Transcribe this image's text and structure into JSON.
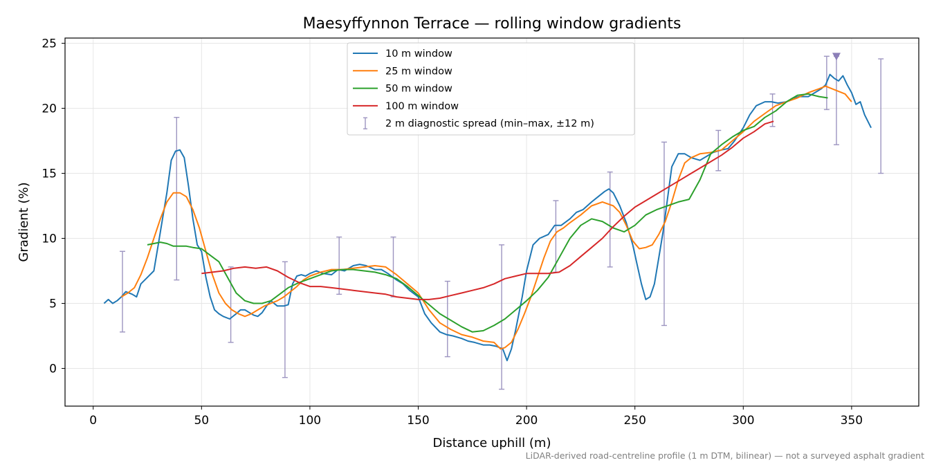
{
  "chart_data": {
    "type": "line",
    "title": "Maesyffynnon Terrace — rolling window gradients",
    "xlabel": "Distance uphill (m)",
    "ylabel": "Gradient (%)",
    "xlim": [
      -13,
      381
    ],
    "ylim": [
      -2.9,
      25.4
    ],
    "xticks": [
      0,
      50,
      100,
      150,
      200,
      250,
      300,
      350
    ],
    "yticks": [
      0,
      5,
      10,
      15,
      20,
      25
    ],
    "grid": true,
    "legend_position": "top-center",
    "footnote": "LiDAR-derived road-centreline profile (1 m DTM, bilinear) — not a surveyed asphalt gradient",
    "series": [
      {
        "name": "10 m window",
        "color": "#1f77b4",
        "x": [
          5,
          7,
          9,
          11,
          13,
          15,
          18,
          20,
          22,
          25,
          28,
          30,
          32,
          34,
          36,
          38,
          40,
          42,
          44,
          46,
          48,
          50,
          52,
          54,
          56,
          58,
          60,
          63,
          66,
          68,
          70,
          72,
          74,
          76,
          78,
          80,
          82,
          85,
          88,
          90,
          92,
          94,
          96,
          98,
          100,
          103,
          106,
          110,
          113,
          116,
          120,
          123,
          126,
          130,
          133,
          136,
          140,
          143,
          146,
          150,
          153,
          156,
          160,
          163,
          166,
          170,
          173,
          176,
          180,
          183,
          186,
          189,
          191,
          193,
          195,
          198,
          200,
          203,
          206,
          210,
          213,
          216,
          220,
          223,
          226,
          230,
          233,
          236,
          238,
          240,
          243,
          246,
          249,
          251,
          253,
          255,
          257,
          259,
          261,
          263,
          265,
          267,
          270,
          273,
          276,
          280,
          283,
          286,
          290,
          293,
          296,
          300,
          303,
          306,
          310,
          313,
          316,
          320,
          323,
          326,
          330,
          333,
          336,
          338,
          340,
          342,
          344,
          346,
          348,
          350,
          352,
          354,
          356,
          359
        ],
        "y": [
          5.0,
          5.3,
          5.0,
          5.2,
          5.5,
          5.9,
          5.7,
          5.5,
          6.5,
          7.0,
          7.5,
          9.5,
          11.5,
          13.5,
          16.0,
          16.7,
          16.8,
          16.2,
          14.0,
          11.5,
          9.5,
          9.0,
          7.0,
          5.5,
          4.5,
          4.2,
          4.0,
          3.8,
          4.2,
          4.5,
          4.5,
          4.3,
          4.1,
          4.0,
          4.3,
          4.8,
          5.2,
          4.8,
          4.8,
          4.9,
          6.5,
          7.1,
          7.2,
          7.1,
          7.3,
          7.5,
          7.3,
          7.2,
          7.6,
          7.5,
          7.9,
          8.0,
          7.9,
          7.6,
          7.6,
          7.3,
          6.8,
          6.5,
          6.0,
          5.5,
          4.2,
          3.5,
          2.8,
          2.6,
          2.5,
          2.3,
          2.1,
          2.0,
          1.8,
          1.8,
          1.7,
          1.5,
          0.6,
          1.5,
          3.0,
          5.5,
          7.5,
          9.5,
          10.0,
          10.3,
          11.0,
          11.0,
          11.5,
          12.0,
          12.2,
          12.8,
          13.2,
          13.6,
          13.8,
          13.5,
          12.5,
          11.2,
          9.5,
          8.0,
          6.5,
          5.3,
          5.5,
          6.5,
          8.5,
          10.5,
          13.0,
          15.5,
          16.5,
          16.5,
          16.2,
          16.0,
          16.3,
          16.6,
          16.8,
          16.9,
          17.5,
          18.5,
          19.5,
          20.2,
          20.5,
          20.5,
          20.4,
          20.5,
          20.8,
          20.9,
          20.9,
          21.2,
          21.5,
          21.8,
          22.6,
          22.3,
          22.1,
          22.5,
          21.8,
          21.2,
          20.3,
          20.5,
          19.5,
          18.5
        ]
      },
      {
        "name": "25 m window",
        "color": "#ff7f0e",
        "x": [
          13,
          16,
          19,
          22,
          25,
          28,
          31,
          34,
          37,
          40,
          43,
          46,
          49,
          52,
          55,
          58,
          61,
          64,
          67,
          70,
          73,
          76,
          79,
          82,
          85,
          88,
          91,
          94,
          97,
          100,
          105,
          110,
          115,
          120,
          125,
          130,
          135,
          140,
          145,
          150,
          155,
          160,
          165,
          170,
          175,
          180,
          185,
          188,
          190,
          193,
          196,
          199,
          202,
          205,
          208,
          211,
          214,
          217,
          220,
          225,
          230,
          235,
          240,
          243,
          246,
          249,
          252,
          255,
          258,
          261,
          264,
          267,
          270,
          273,
          276,
          280,
          285,
          290,
          295,
          300,
          305,
          310,
          315,
          320,
          325,
          330,
          335,
          338,
          341,
          344,
          347,
          350
        ],
        "y": [
          5.5,
          5.8,
          6.2,
          7.2,
          8.5,
          10.0,
          11.5,
          12.8,
          13.5,
          13.5,
          13.2,
          12.2,
          10.8,
          9.0,
          7.2,
          5.8,
          5.0,
          4.5,
          4.2,
          4.0,
          4.2,
          4.5,
          4.8,
          5.0,
          5.2,
          5.5,
          5.9,
          6.3,
          6.8,
          7.1,
          7.4,
          7.6,
          7.6,
          7.7,
          7.8,
          7.9,
          7.8,
          7.2,
          6.5,
          5.8,
          4.5,
          3.5,
          3.0,
          2.6,
          2.4,
          2.1,
          2.0,
          1.5,
          1.6,
          2.0,
          3.0,
          4.2,
          5.5,
          7.0,
          8.5,
          9.8,
          10.5,
          10.8,
          11.2,
          11.8,
          12.5,
          12.8,
          12.5,
          12.0,
          11.0,
          9.8,
          9.2,
          9.3,
          9.5,
          10.3,
          11.3,
          12.8,
          14.5,
          15.8,
          16.2,
          16.5,
          16.6,
          16.8,
          17.5,
          18.2,
          19.0,
          19.6,
          20.2,
          20.5,
          20.8,
          21.2,
          21.5,
          21.7,
          21.5,
          21.3,
          21.1,
          20.5
        ]
      },
      {
        "name": "50 m window",
        "color": "#2ca02c",
        "x": [
          25,
          28,
          31,
          34,
          37,
          40,
          43,
          46,
          50,
          54,
          58,
          62,
          66,
          70,
          74,
          78,
          82,
          86,
          90,
          95,
          100,
          105,
          110,
          115,
          120,
          125,
          130,
          135,
          140,
          145,
          150,
          155,
          160,
          165,
          170,
          175,
          180,
          185,
          190,
          195,
          200,
          205,
          210,
          215,
          220,
          225,
          230,
          235,
          240,
          245,
          250,
          255,
          260,
          265,
          270,
          275,
          280,
          285,
          290,
          295,
          300,
          305,
          310,
          315,
          320,
          325,
          330,
          335,
          339
        ],
        "y": [
          9.5,
          9.6,
          9.7,
          9.6,
          9.4,
          9.4,
          9.4,
          9.3,
          9.2,
          8.7,
          8.2,
          7.0,
          5.8,
          5.2,
          5.0,
          5.0,
          5.2,
          5.7,
          6.2,
          6.6,
          6.9,
          7.2,
          7.5,
          7.6,
          7.6,
          7.5,
          7.4,
          7.2,
          6.9,
          6.3,
          5.6,
          4.9,
          4.2,
          3.7,
          3.2,
          2.8,
          2.9,
          3.3,
          3.8,
          4.5,
          5.2,
          6.0,
          7.0,
          8.5,
          10.0,
          11.0,
          11.5,
          11.3,
          10.8,
          10.5,
          11.0,
          11.8,
          12.2,
          12.5,
          12.8,
          13.0,
          14.5,
          16.5,
          17.2,
          17.8,
          18.3,
          18.6,
          19.3,
          19.8,
          20.5,
          21.0,
          21.1,
          20.9,
          20.8
        ]
      },
      {
        "name": "100 m window",
        "color": "#d62728",
        "x": [
          50,
          55,
          60,
          65,
          70,
          75,
          80,
          85,
          90,
          95,
          100,
          105,
          110,
          115,
          120,
          125,
          130,
          135,
          140,
          145,
          150,
          155,
          160,
          165,
          170,
          175,
          180,
          185,
          190,
          195,
          200,
          205,
          210,
          215,
          220,
          225,
          230,
          235,
          240,
          245,
          250,
          255,
          260,
          265,
          270,
          275,
          280,
          285,
          290,
          295,
          300,
          305,
          310,
          314
        ],
        "y": [
          7.3,
          7.4,
          7.5,
          7.7,
          7.8,
          7.7,
          7.8,
          7.5,
          7.0,
          6.6,
          6.3,
          6.3,
          6.2,
          6.1,
          6.0,
          5.9,
          5.8,
          5.7,
          5.5,
          5.4,
          5.3,
          5.3,
          5.4,
          5.6,
          5.8,
          6.0,
          6.2,
          6.5,
          6.9,
          7.1,
          7.3,
          7.3,
          7.3,
          7.4,
          7.9,
          8.6,
          9.3,
          10.0,
          10.9,
          11.7,
          12.4,
          12.9,
          13.4,
          13.9,
          14.4,
          14.9,
          15.4,
          15.9,
          16.4,
          17.0,
          17.7,
          18.2,
          18.8,
          19.0
        ]
      }
    ],
    "errorbars": {
      "name": "2 m diagnostic spread (min–max, ±12 m)",
      "color": "#9c94c0",
      "points": [
        {
          "x": 13.5,
          "low": 2.8,
          "high": 9.0
        },
        {
          "x": 38.5,
          "low": 6.8,
          "high": 19.3
        },
        {
          "x": 63.5,
          "low": 2.0,
          "high": 7.8
        },
        {
          "x": 88.5,
          "low": -0.7,
          "high": 8.2
        },
        {
          "x": 113.5,
          "low": 5.7,
          "high": 10.1
        },
        {
          "x": 138.5,
          "low": 5.5,
          "high": 10.1
        },
        {
          "x": 163.5,
          "low": 0.9,
          "high": 6.7
        },
        {
          "x": 188.5,
          "low": -1.6,
          "high": 9.5
        },
        {
          "x": 213.5,
          "low": 7.4,
          "high": 12.9
        },
        {
          "x": 238.5,
          "low": 7.8,
          "high": 15.1
        },
        {
          "x": 263.5,
          "low": 3.3,
          "high": 17.4
        },
        {
          "x": 288.5,
          "low": 15.2,
          "high": 18.3
        },
        {
          "x": 313.5,
          "low": 18.6,
          "high": 21.1
        },
        {
          "x": 338.5,
          "low": 19.9,
          "high": 24.0
        },
        {
          "x": 343.0,
          "low": 17.2,
          "high": 24.0
        },
        {
          "x": 363.5,
          "low": 15.0,
          "high": 23.8
        }
      ]
    },
    "marker": {
      "x": 343,
      "y": 24.0,
      "shape": "triangle-down",
      "color": "#8c7fb8"
    }
  }
}
